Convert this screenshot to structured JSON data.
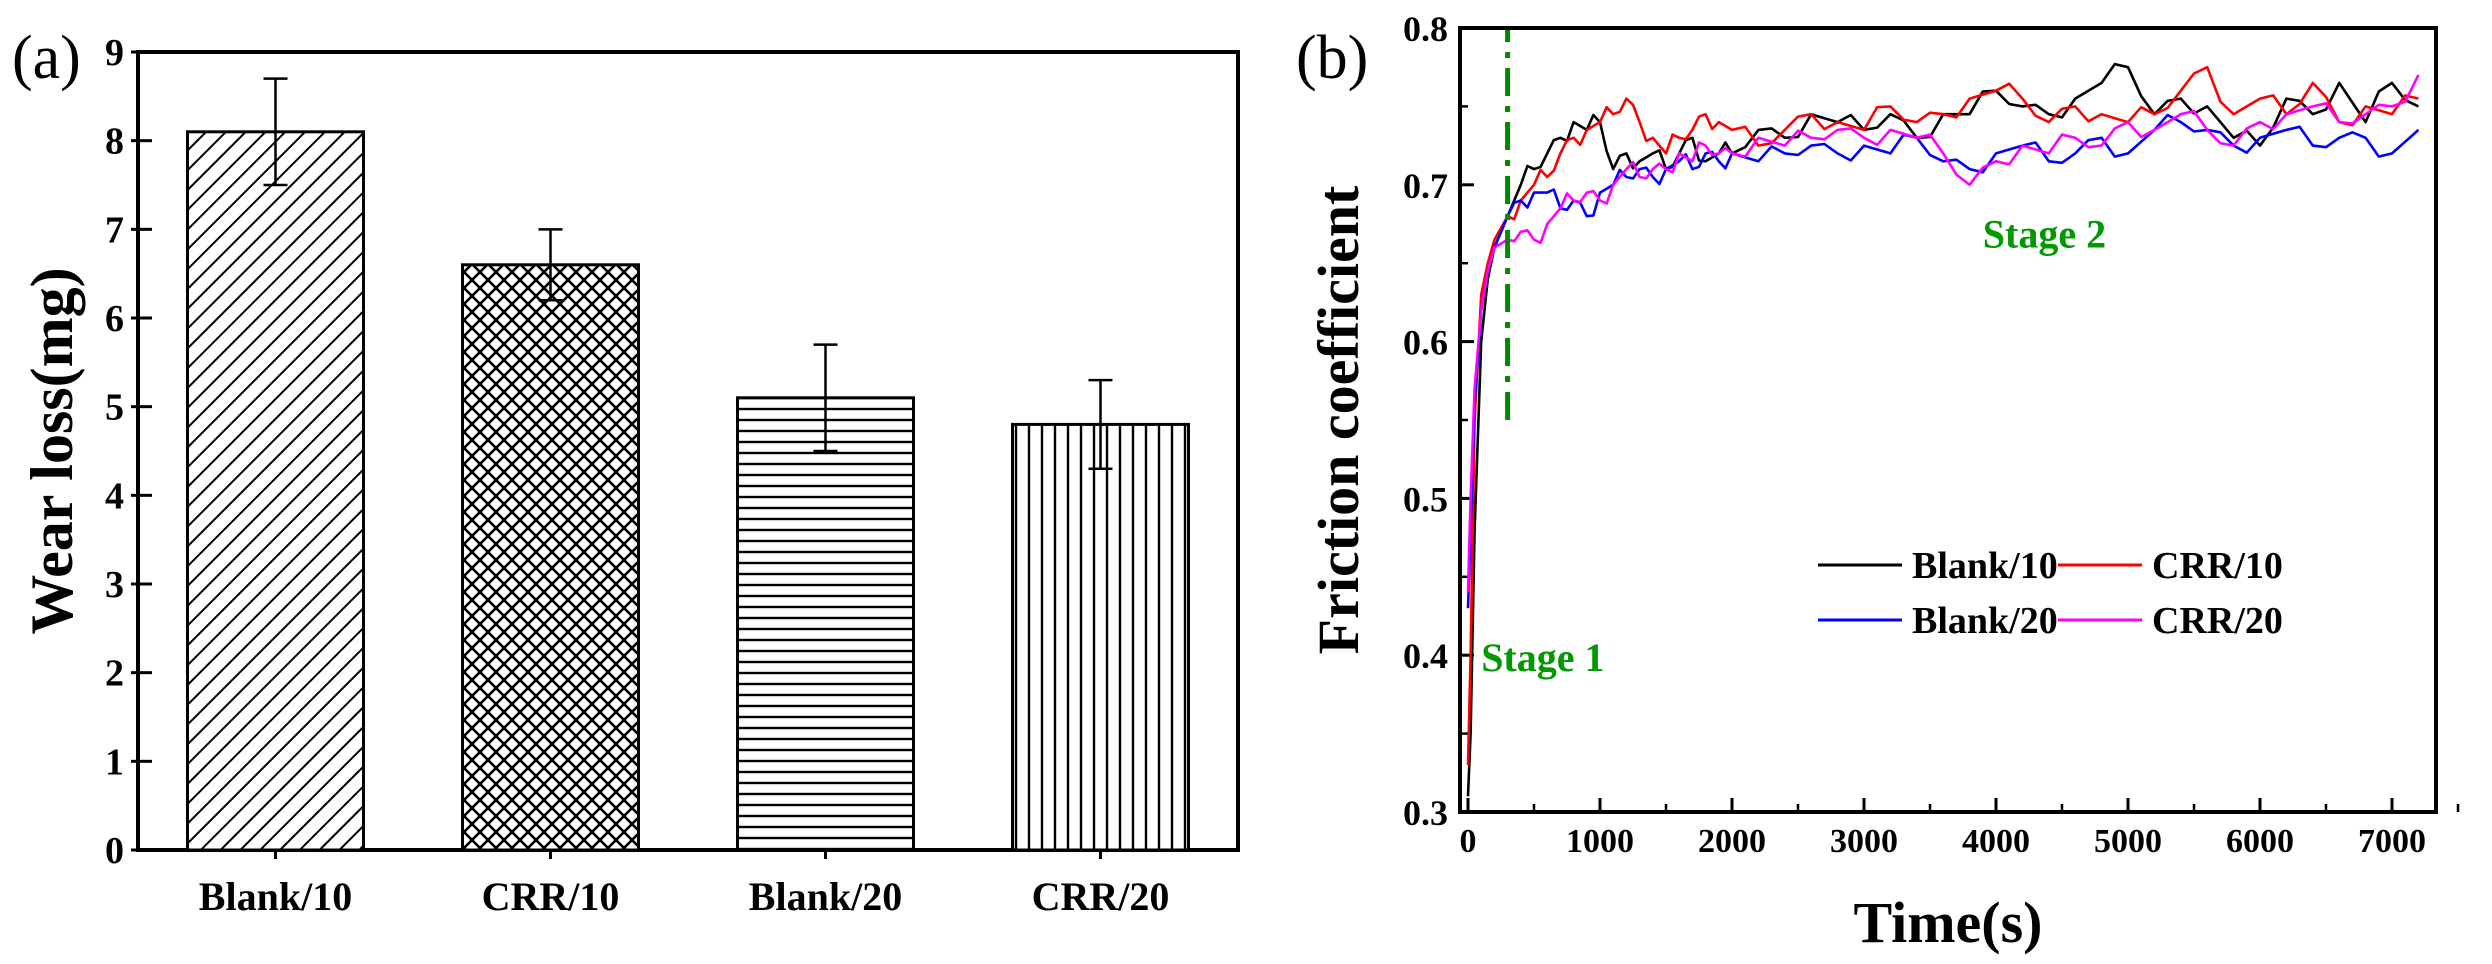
{
  "chart_data": [
    {
      "panel_label": "(a)",
      "type": "bar",
      "title": "",
      "xlabel": "",
      "ylabel": "Wear loss(mg)",
      "ylim": [
        0,
        9
      ],
      "yticks": [
        "0",
        "1",
        "2",
        "3",
        "4",
        "5",
        "6",
        "7",
        "8",
        "9"
      ],
      "categories": [
        "Blank/10",
        "CRR/10",
        "Blank/20",
        "CRR/20"
      ],
      "values": [
        8.1,
        6.6,
        5.1,
        4.8
      ],
      "errors": [
        0.6,
        0.4,
        0.6,
        0.5
      ],
      "patterns": [
        "diagonal",
        "crosshatch",
        "horizontal",
        "vertical"
      ],
      "grid": false
    },
    {
      "panel_label": "(b)",
      "type": "line",
      "title": "",
      "xlabel": "Time(s)",
      "ylabel": "Friction coefficient",
      "xlim": [
        0,
        7400
      ],
      "ylim": [
        0.3,
        0.8
      ],
      "xticks": [
        "0",
        "1000",
        "2000",
        "3000",
        "4000",
        "5000",
        "6000",
        "7000"
      ],
      "yticks": [
        "0.3",
        "0.4",
        "0.5",
        "0.6",
        "0.7",
        "0.8"
      ],
      "stage_divider_x": 300,
      "stage_divider_y": [
        0.55,
        0.8
      ],
      "annotations": [
        {
          "text": "Stage 1",
          "x": 100,
          "y": 0.39
        },
        {
          "text": "Stage 2",
          "x": 3900,
          "y": 0.66
        }
      ],
      "legend_position": "center-right",
      "grid": false,
      "series": [
        {
          "name": "Blank/10",
          "color": "#000000",
          "x": [
            0,
            20,
            50,
            100,
            150,
            200,
            300,
            400,
            500,
            600,
            700,
            800,
            900,
            1000,
            1100,
            1200,
            1300,
            1400,
            1500,
            1600,
            1700,
            1800,
            1900,
            2000,
            2200,
            2400,
            2600,
            2800,
            3000,
            3200,
            3400,
            3600,
            3800,
            4000,
            4200,
            4400,
            4600,
            4800,
            5000,
            5200,
            5400,
            5600,
            5800,
            6000,
            6200,
            6400,
            6600,
            6800,
            7000,
            7200
          ],
          "y": [
            0.31,
            0.35,
            0.48,
            0.6,
            0.64,
            0.66,
            0.68,
            0.7,
            0.71,
            0.72,
            0.73,
            0.74,
            0.735,
            0.74,
            0.71,
            0.72,
            0.715,
            0.72,
            0.71,
            0.72,
            0.73,
            0.715,
            0.72,
            0.72,
            0.735,
            0.73,
            0.745,
            0.74,
            0.735,
            0.745,
            0.73,
            0.745,
            0.745,
            0.76,
            0.75,
            0.745,
            0.755,
            0.765,
            0.775,
            0.745,
            0.755,
            0.75,
            0.73,
            0.725,
            0.755,
            0.745,
            0.765,
            0.74,
            0.765,
            0.75
          ]
        },
        {
          "name": "CRR/10",
          "color": "#ff0000",
          "x": [
            0,
            20,
            50,
            100,
            150,
            200,
            300,
            400,
            500,
            600,
            700,
            800,
            900,
            1000,
            1100,
            1200,
            1300,
            1400,
            1500,
            1600,
            1700,
            1800,
            1900,
            2000,
            2200,
            2400,
            2600,
            2800,
            3000,
            3200,
            3400,
            3600,
            3800,
            4000,
            4200,
            4400,
            4600,
            4800,
            5000,
            5200,
            5400,
            5600,
            5800,
            6000,
            6200,
            6400,
            6600,
            6800,
            7000,
            7200
          ],
          "y": [
            0.33,
            0.4,
            0.55,
            0.63,
            0.65,
            0.665,
            0.68,
            0.69,
            0.7,
            0.705,
            0.72,
            0.73,
            0.735,
            0.74,
            0.745,
            0.755,
            0.74,
            0.73,
            0.72,
            0.73,
            0.735,
            0.745,
            0.74,
            0.735,
            0.725,
            0.735,
            0.745,
            0.74,
            0.735,
            0.75,
            0.74,
            0.745,
            0.755,
            0.76,
            0.755,
            0.74,
            0.75,
            0.745,
            0.74,
            0.745,
            0.76,
            0.775,
            0.745,
            0.755,
            0.745,
            0.765,
            0.74,
            0.75,
            0.745,
            0.755
          ]
        },
        {
          "name": "Blank/20",
          "color": "#0000ff",
          "x": [
            0,
            20,
            50,
            100,
            150,
            200,
            300,
            400,
            500,
            600,
            700,
            800,
            900,
            1000,
            1100,
            1200,
            1300,
            1400,
            1500,
            1600,
            1700,
            1800,
            1900,
            2000,
            2200,
            2400,
            2600,
            2800,
            3000,
            3200,
            3400,
            3600,
            3800,
            4000,
            4200,
            4400,
            4600,
            4800,
            5000,
            5200,
            5400,
            5600,
            5800,
            6000,
            6200,
            6400,
            6600,
            6800,
            7000,
            7200
          ],
          "y": [
            0.43,
            0.48,
            0.56,
            0.62,
            0.645,
            0.66,
            0.68,
            0.69,
            0.695,
            0.695,
            0.685,
            0.69,
            0.68,
            0.695,
            0.7,
            0.705,
            0.71,
            0.705,
            0.71,
            0.715,
            0.71,
            0.72,
            0.715,
            0.72,
            0.715,
            0.72,
            0.725,
            0.72,
            0.725,
            0.72,
            0.73,
            0.715,
            0.71,
            0.72,
            0.725,
            0.715,
            0.72,
            0.73,
            0.72,
            0.735,
            0.74,
            0.735,
            0.725,
            0.73,
            0.735,
            0.725,
            0.73,
            0.73,
            0.72,
            0.735
          ]
        },
        {
          "name": "CRR/20",
          "color": "#ff00ff",
          "x": [
            0,
            20,
            50,
            100,
            150,
            200,
            300,
            400,
            500,
            600,
            700,
            800,
            900,
            1000,
            1100,
            1200,
            1300,
            1400,
            1500,
            1600,
            1700,
            1800,
            1900,
            2000,
            2200,
            2400,
            2600,
            2800,
            3000,
            3200,
            3400,
            3600,
            3800,
            4000,
            4200,
            4400,
            4600,
            4800,
            5000,
            5200,
            5400,
            5600,
            5800,
            6000,
            6200,
            6400,
            6600,
            6800,
            7000,
            7200
          ],
          "y": [
            0.44,
            0.5,
            0.57,
            0.62,
            0.645,
            0.66,
            0.665,
            0.67,
            0.665,
            0.675,
            0.685,
            0.69,
            0.695,
            0.69,
            0.7,
            0.71,
            0.705,
            0.71,
            0.71,
            0.72,
            0.715,
            0.725,
            0.72,
            0.72,
            0.73,
            0.725,
            0.73,
            0.735,
            0.73,
            0.735,
            0.73,
            0.72,
            0.7,
            0.715,
            0.725,
            0.72,
            0.73,
            0.725,
            0.74,
            0.735,
            0.745,
            0.735,
            0.725,
            0.74,
            0.745,
            0.75,
            0.74,
            0.745,
            0.75,
            0.77
          ]
        }
      ]
    }
  ]
}
